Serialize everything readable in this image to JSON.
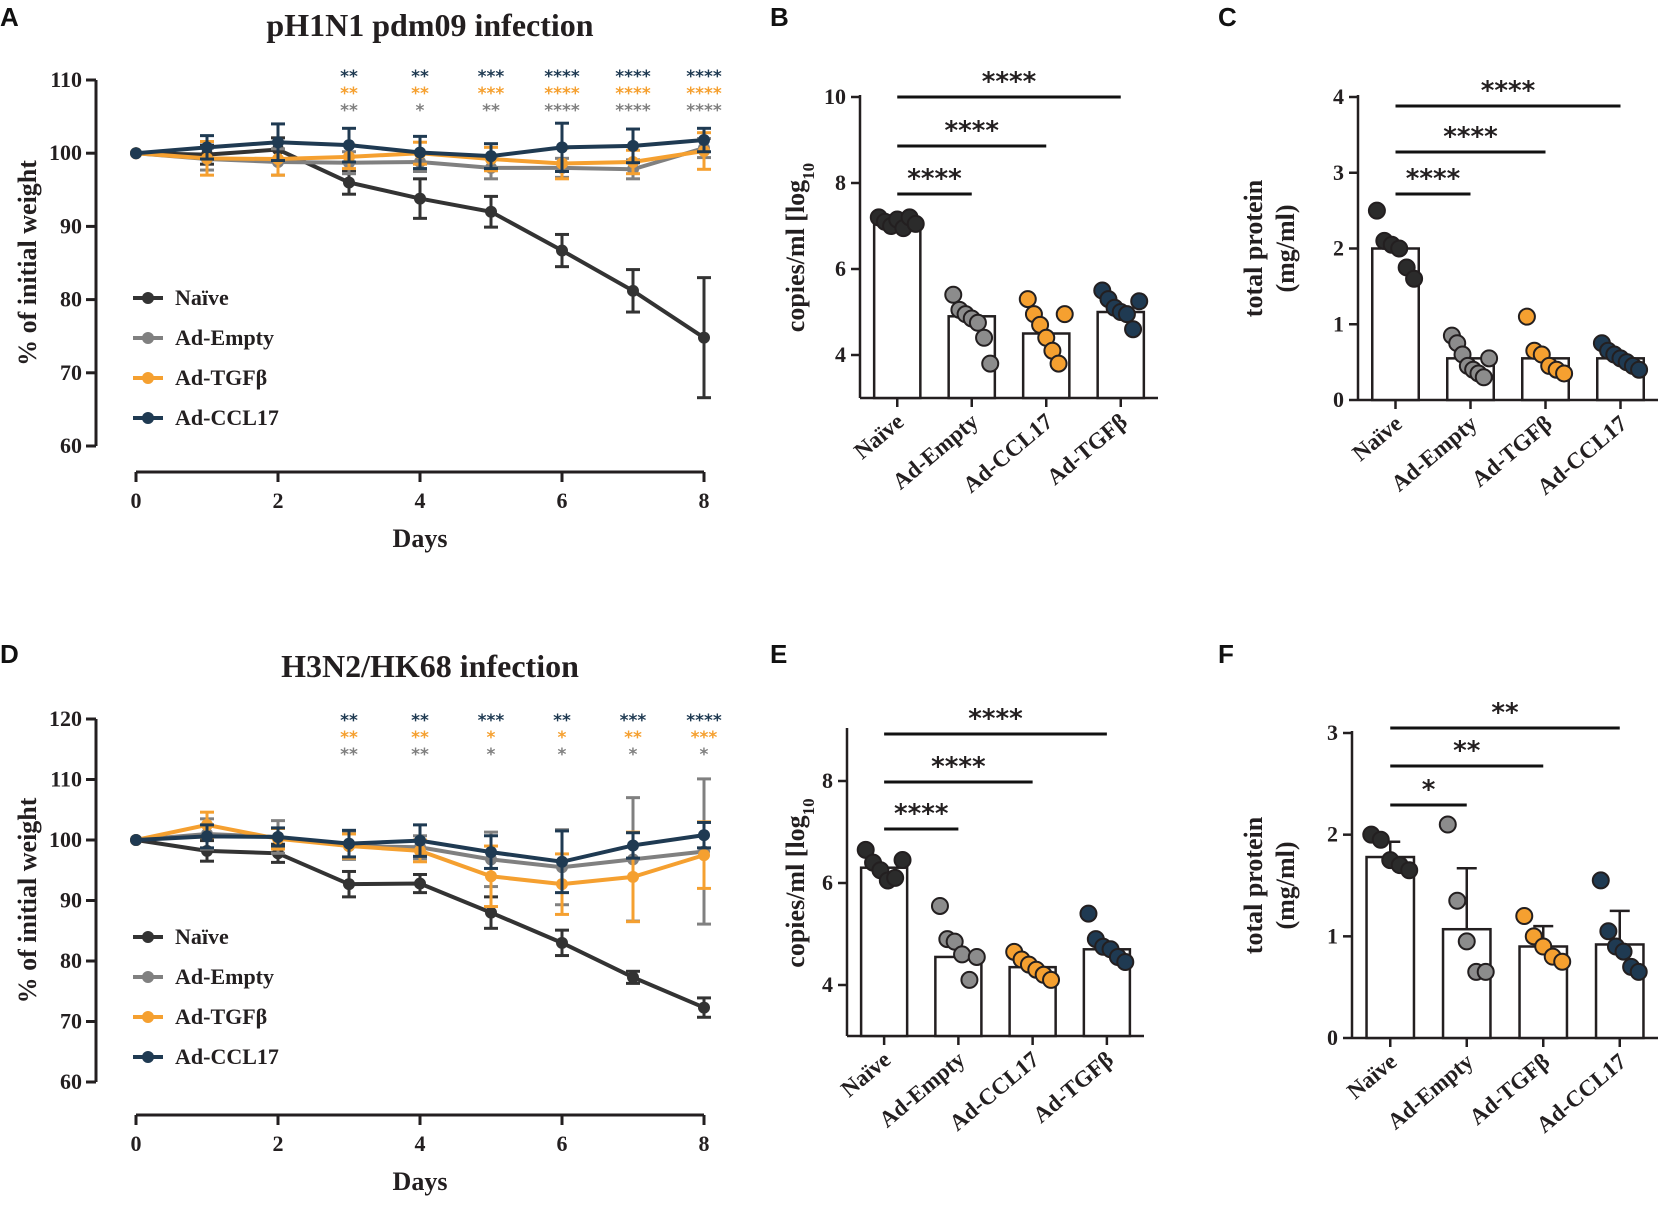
{
  "chart_data": [
    {
      "panel": "A",
      "type": "line",
      "title": "pH1N1 pdm09 infection",
      "xlabel": "Days",
      "ylabel": "% of initial weight",
      "xlim": [
        0,
        8
      ],
      "ylim": [
        60,
        110
      ],
      "xticks": [
        "0",
        "2",
        "4",
        "6",
        "8"
      ],
      "yticks": [
        "60",
        "70",
        "80",
        "90",
        "100",
        "110"
      ],
      "x": [
        0,
        1,
        2,
        3,
        4,
        5,
        6,
        7,
        8
      ],
      "series": [
        {
          "name": "Naïve",
          "color": "#333333",
          "values": [
            100,
            99.8,
            100.5,
            96,
            93.8,
            92,
            86.7,
            81.2,
            74.8
          ],
          "err": [
            0,
            1.3,
            1.6,
            1.6,
            2.7,
            2.1,
            2.2,
            2.9,
            8.2
          ]
        },
        {
          "name": "Ad-Empty",
          "color": "#808080",
          "values": [
            100,
            99.2,
            98.8,
            98.7,
            98.8,
            98,
            98,
            97.8,
            100.7
          ],
          "err": [
            0,
            1.5,
            1.8,
            1.5,
            1.3,
            1.5,
            1.3,
            1.3,
            1.3
          ]
        },
        {
          "name": "Ad-TGFβ",
          "color": "#f5a030",
          "values": [
            100,
            99.3,
            99.2,
            99.5,
            100,
            99.2,
            98.6,
            98.8,
            100.3
          ],
          "err": [
            0,
            2.3,
            2.2,
            1.6,
            1.5,
            1.6,
            2.1,
            1.6,
            2.5
          ]
        },
        {
          "name": "Ad-CCL17",
          "color": "#1f3a52",
          "values": [
            100,
            100.8,
            101.5,
            101.1,
            100.1,
            99.6,
            100.8,
            101,
            101.8
          ],
          "err": [
            0,
            1.6,
            2.5,
            2.3,
            2.2,
            1.7,
            3.3,
            2.3,
            1.6
          ]
        }
      ],
      "significance": [
        {
          "x": 3,
          "marks": [
            "**",
            "**",
            "**"
          ]
        },
        {
          "x": 4,
          "marks": [
            "**",
            "**",
            "*"
          ]
        },
        {
          "x": 5,
          "marks": [
            "***",
            "***",
            "**"
          ]
        },
        {
          "x": 6,
          "marks": [
            "****",
            "****",
            "****"
          ]
        },
        {
          "x": 7,
          "marks": [
            "****",
            "****",
            "****"
          ]
        },
        {
          "x": 8,
          "marks": [
            "****",
            "****",
            "****"
          ]
        }
      ]
    },
    {
      "panel": "B",
      "type": "bar",
      "ylabel": "copies/ml [log",
      "ylabel_sub": "10",
      "ylim": [
        3,
        10
      ],
      "yticks": [
        "4",
        "6",
        "8",
        "10"
      ],
      "categories": [
        "Naïve",
        "Ad-Empty",
        "Ad-CCL17",
        "Ad-TGFβ"
      ],
      "dot_colors": [
        "#2b2b2b",
        "#8c8c8c",
        "#f5a030",
        "#1f3a52"
      ],
      "values": [
        7.05,
        4.9,
        4.5,
        5.0
      ],
      "points": [
        [
          7.2,
          7.1,
          7.0,
          7.15,
          6.95,
          7.2,
          7.05
        ],
        [
          5.4,
          5.05,
          4.95,
          4.85,
          4.75,
          4.4,
          3.8
        ],
        [
          5.3,
          4.95,
          4.7,
          4.4,
          4.1,
          3.8,
          4.95
        ],
        [
          5.5,
          5.3,
          5.1,
          5.0,
          4.95,
          4.6,
          5.25
        ]
      ],
      "comparisons": [
        {
          "from": 0,
          "to": 1,
          "label": "****"
        },
        {
          "from": 0,
          "to": 2,
          "label": "****"
        },
        {
          "from": 0,
          "to": 3,
          "label": "****"
        }
      ]
    },
    {
      "panel": "C",
      "type": "bar",
      "ylabel": "total protein",
      "ylabel2": "(mg/ml)",
      "ylim": [
        0,
        4
      ],
      "yticks": [
        "0",
        "1",
        "2",
        "3",
        "4"
      ],
      "categories": [
        "Naïve",
        "Ad-Empty",
        "Ad-TGFβ",
        "Ad-CCL17"
      ],
      "dot_colors": [
        "#2b2b2b",
        "#8c8c8c",
        "#f5a030",
        "#1f3a52"
      ],
      "values": [
        2.0,
        0.55,
        0.55,
        0.55
      ],
      "points": [
        [
          2.5,
          2.1,
          2.05,
          2.0,
          1.75,
          1.6
        ],
        [
          0.85,
          0.75,
          0.6,
          0.45,
          0.4,
          0.35,
          0.3,
          0.55
        ],
        [
          1.1,
          0.65,
          0.6,
          0.45,
          0.4,
          0.35
        ],
        [
          0.75,
          0.65,
          0.6,
          0.55,
          0.5,
          0.45,
          0.4
        ]
      ],
      "comparisons": [
        {
          "from": 0,
          "to": 1,
          "label": "****"
        },
        {
          "from": 0,
          "to": 2,
          "label": "****"
        },
        {
          "from": 0,
          "to": 3,
          "label": "****"
        }
      ]
    },
    {
      "panel": "D",
      "type": "line",
      "title": "H3N2/HK68 infection",
      "xlabel": "Days",
      "ylabel": "% of initial weight",
      "xlim": [
        0,
        8
      ],
      "ylim": [
        60,
        120
      ],
      "xticks": [
        "0",
        "2",
        "4",
        "6",
        "8"
      ],
      "yticks": [
        "60",
        "70",
        "80",
        "90",
        "100",
        "110",
        "120"
      ],
      "x": [
        0,
        1,
        2,
        3,
        4,
        5,
        6,
        7,
        8
      ],
      "series": [
        {
          "name": "Naïve",
          "color": "#333333",
          "values": [
            100,
            98.2,
            97.8,
            92.7,
            92.8,
            88,
            83,
            77.3,
            72.3
          ],
          "err": [
            0,
            1.7,
            1.5,
            2.1,
            1.5,
            2.6,
            2.1,
            1,
            1.6
          ]
        },
        {
          "name": "Ad-Empty",
          "color": "#808080",
          "values": [
            100,
            101,
            100.5,
            99,
            98.8,
            96.8,
            95.5,
            96.8,
            98.1
          ],
          "err": [
            0,
            2.5,
            2.7,
            2.2,
            1.9,
            4.5,
            6.2,
            10.2,
            12
          ]
        },
        {
          "name": "Ad-TGFβ",
          "color": "#f5a030",
          "values": [
            100,
            102.5,
            100.2,
            99,
            98.2,
            94,
            92.7,
            93.9,
            97.5
          ],
          "err": [
            0,
            2.1,
            1.7,
            2,
            1.8,
            5,
            5,
            7.4,
            5.5
          ]
        },
        {
          "name": "Ad-CCL17",
          "color": "#1f3a52",
          "values": [
            100,
            100.6,
            100.5,
            99.4,
            99.9,
            98,
            96.4,
            99.1,
            100.8
          ],
          "err": [
            0,
            1.9,
            1.5,
            2.2,
            2.6,
            2.7,
            5.1,
            2.1,
            2.1
          ]
        }
      ],
      "significance": [
        {
          "x": 3,
          "marks": [
            "**",
            "**",
            "**"
          ]
        },
        {
          "x": 4,
          "marks": [
            "**",
            "**",
            "**"
          ]
        },
        {
          "x": 5,
          "marks": [
            "***",
            "*",
            "*"
          ]
        },
        {
          "x": 6,
          "marks": [
            "**",
            "*",
            "*"
          ]
        },
        {
          "x": 7,
          "marks": [
            "***",
            "**",
            "*"
          ]
        },
        {
          "x": 8,
          "marks": [
            "****",
            "***",
            "*"
          ]
        }
      ]
    },
    {
      "panel": "E",
      "type": "bar",
      "ylabel": "copies/ml [log",
      "ylabel_sub": "10",
      "ylim": [
        3,
        9
      ],
      "yticks": [
        "4",
        "6",
        "8"
      ],
      "categories": [
        "Naïve",
        "Ad-Empty",
        "Ad-CCL17",
        "Ad-TGFβ"
      ],
      "dot_colors": [
        "#2b2b2b",
        "#8c8c8c",
        "#f5a030",
        "#1f3a52"
      ],
      "values": [
        6.3,
        4.55,
        4.35,
        4.7
      ],
      "points": [
        [
          6.65,
          6.4,
          6.25,
          6.05,
          6.1,
          6.45
        ],
        [
          5.55,
          4.9,
          4.85,
          4.6,
          4.1,
          4.55
        ],
        [
          4.65,
          4.5,
          4.4,
          4.3,
          4.2,
          4.1
        ],
        [
          5.4,
          4.9,
          4.75,
          4.7,
          4.55,
          4.45
        ]
      ],
      "comparisons": [
        {
          "from": 0,
          "to": 1,
          "label": "****"
        },
        {
          "from": 0,
          "to": 2,
          "label": "****"
        },
        {
          "from": 0,
          "to": 3,
          "label": "****"
        }
      ]
    },
    {
      "panel": "F",
      "type": "bar",
      "ylabel": "total protein",
      "ylabel2": "(mg/ml)",
      "ylim": [
        0,
        3
      ],
      "yticks": [
        "0",
        "1",
        "2",
        "3"
      ],
      "categories": [
        "Naïve",
        "Ad-Empty",
        "Ad-TGFβ",
        "Ad-CCL17"
      ],
      "dot_colors": [
        "#2b2b2b",
        "#8c8c8c",
        "#f5a030",
        "#1f3a52"
      ],
      "values": [
        1.78,
        1.07,
        0.9,
        0.92
      ],
      "err": [
        0.15,
        0.6,
        0.2,
        0.33
      ],
      "points": [
        [
          2.0,
          1.95,
          1.75,
          1.7,
          1.65
        ],
        [
          2.1,
          1.35,
          0.95,
          0.65,
          0.65
        ],
        [
          1.2,
          1.0,
          0.9,
          0.8,
          0.75
        ],
        [
          1.55,
          1.05,
          0.9,
          0.85,
          0.7,
          0.65
        ]
      ],
      "comparisons": [
        {
          "from": 0,
          "to": 1,
          "label": "*"
        },
        {
          "from": 0,
          "to": 2,
          "label": "**"
        },
        {
          "from": 0,
          "to": 3,
          "label": "**"
        }
      ]
    }
  ]
}
